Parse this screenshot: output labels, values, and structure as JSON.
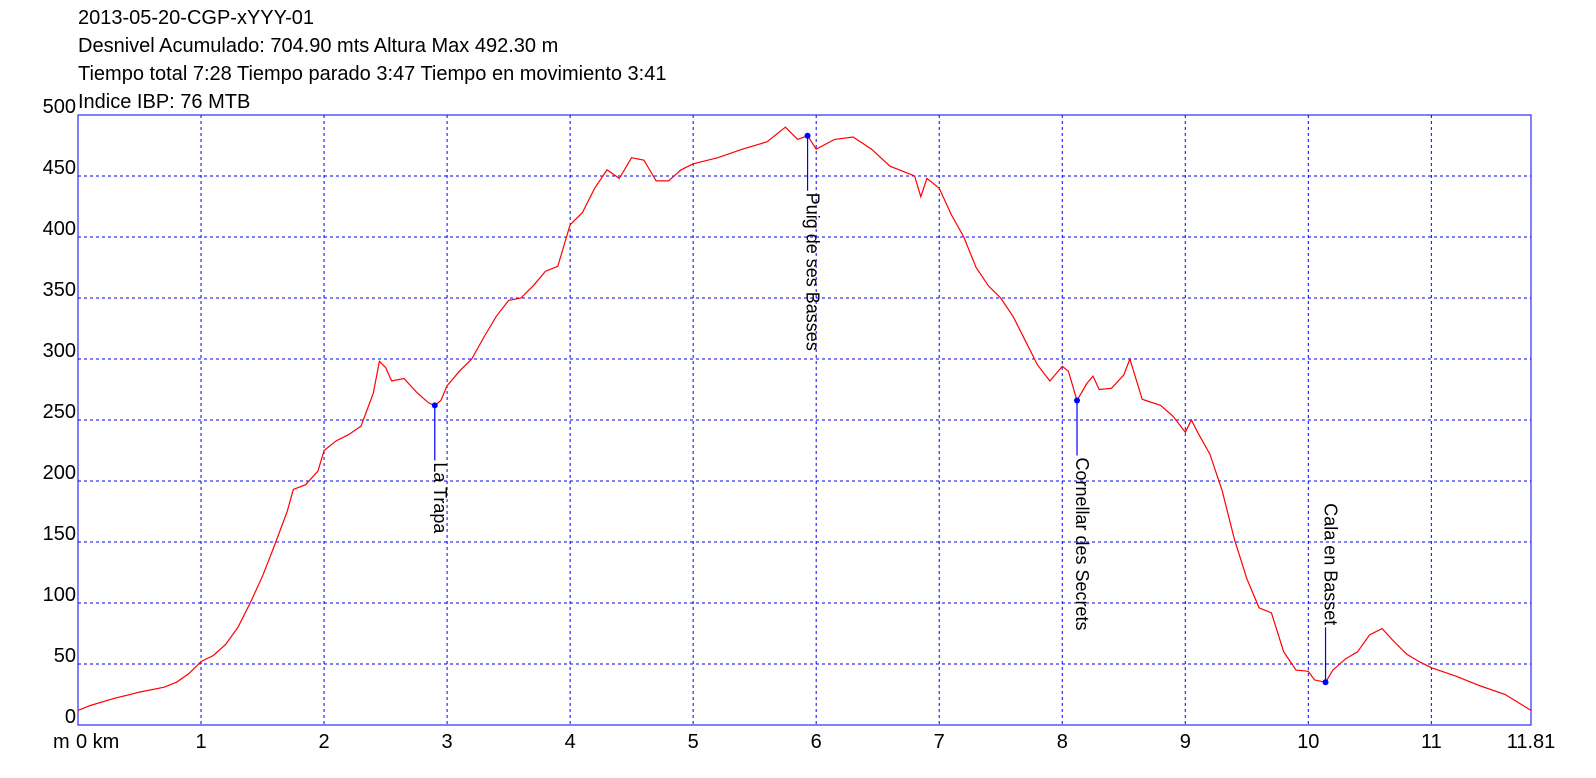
{
  "chart_data": {
    "type": "line",
    "title": "2013-05-20-CGP-xYYY-01",
    "subtitles": [
      "Desnivel Acumulado: 704.90 mts  Altura Max 492.30 m",
      "Tiempo total 7:28 Tiempo parado 3:47 Tiempo en movimiento 3:41",
      "Indice IBP: 76 MTB"
    ],
    "ylabel": "m",
    "xlim": [
      0,
      11.81
    ],
    "ylim": [
      0,
      500
    ],
    "xticks": [
      {
        "value": 0,
        "label": "0 km"
      },
      1,
      2,
      3,
      4,
      5,
      6,
      7,
      8,
      9,
      10,
      11,
      11.81
    ],
    "yticks": [
      0,
      50,
      100,
      150,
      200,
      250,
      300,
      350,
      400,
      450,
      500
    ],
    "grid": true,
    "grid_color": "#0000ff",
    "frame_color": "#0000ff",
    "series": [
      {
        "color": "#ff0000",
        "x": [
          0,
          0.1,
          0.3,
          0.5,
          0.7,
          0.8,
          0.9,
          1.0,
          1.1,
          1.2,
          1.3,
          1.4,
          1.5,
          1.6,
          1.7,
          1.75,
          1.85,
          1.95,
          2.0,
          2.1,
          2.2,
          2.3,
          2.4,
          2.45,
          2.5,
          2.55,
          2.65,
          2.75,
          2.85,
          2.9,
          2.95,
          3.0,
          3.1,
          3.2,
          3.3,
          3.4,
          3.5,
          3.6,
          3.7,
          3.8,
          3.9,
          4.0,
          4.1,
          4.2,
          4.3,
          4.4,
          4.5,
          4.6,
          4.7,
          4.8,
          4.9,
          5.0,
          5.2,
          5.4,
          5.6,
          5.75,
          5.85,
          5.93,
          6.0,
          6.15,
          6.3,
          6.45,
          6.6,
          6.8,
          6.85,
          6.9,
          7.0,
          7.1,
          7.2,
          7.3,
          7.4,
          7.5,
          7.6,
          7.7,
          7.8,
          7.9,
          8.0,
          8.05,
          8.12,
          8.2,
          8.25,
          8.3,
          8.4,
          8.5,
          8.55,
          8.65,
          8.8,
          8.9,
          9.0,
          9.05,
          9.1,
          9.2,
          9.3,
          9.4,
          9.5,
          9.6,
          9.7,
          9.8,
          9.9,
          10.0,
          10.05,
          10.14,
          10.2,
          10.3,
          10.4,
          10.5,
          10.6,
          10.7,
          10.8,
          10.9,
          11.0,
          11.2,
          11.4,
          11.6,
          11.81
        ],
        "values": [
          12,
          16,
          22,
          27,
          31,
          35,
          42,
          52,
          57,
          66,
          80,
          100,
          122,
          148,
          175,
          193,
          197,
          208,
          225,
          233,
          238,
          245,
          272,
          298,
          293,
          282,
          284,
          273,
          264,
          262,
          266,
          278,
          290,
          300,
          318,
          335,
          348,
          350,
          360,
          372,
          376,
          410,
          420,
          440,
          455,
          448,
          465,
          463,
          446,
          446,
          455,
          460,
          465,
          472,
          478,
          490,
          480,
          483,
          472,
          480,
          482,
          472,
          458,
          450,
          433,
          448,
          440,
          418,
          400,
          375,
          360,
          350,
          335,
          315,
          295,
          282,
          294,
          290,
          266,
          280,
          286,
          275,
          276,
          287,
          300,
          267,
          262,
          253,
          240,
          250,
          240,
          222,
          192,
          152,
          120,
          96,
          92,
          60,
          45,
          44,
          37,
          35,
          45,
          54,
          60,
          74,
          79,
          68,
          58,
          52,
          47,
          40,
          32,
          25,
          12
        ]
      }
    ],
    "waypoints": [
      {
        "name": "La Trapa",
        "x": 2.9,
        "y": 262
      },
      {
        "name": "Puig de ses Basses",
        "x": 5.93,
        "y": 483
      },
      {
        "name": "Cornellar des Secrets",
        "x": 8.12,
        "y": 266
      },
      {
        "name": "Cala en Basset",
        "x": 10.14,
        "y": 35
      }
    ],
    "waypoint_color": "#0000ff"
  }
}
